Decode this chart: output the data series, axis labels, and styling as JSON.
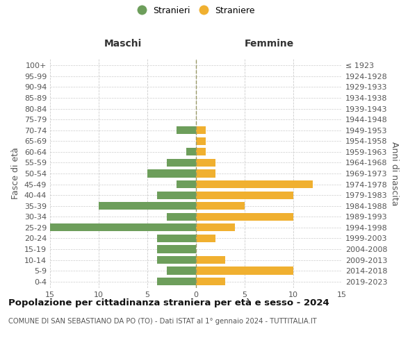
{
  "age_groups": [
    "100+",
    "95-99",
    "90-94",
    "85-89",
    "80-84",
    "75-79",
    "70-74",
    "65-69",
    "60-64",
    "55-59",
    "50-54",
    "45-49",
    "40-44",
    "35-39",
    "30-34",
    "25-29",
    "20-24",
    "15-19",
    "10-14",
    "5-9",
    "0-4"
  ],
  "birth_years": [
    "≤ 1923",
    "1924-1928",
    "1929-1933",
    "1934-1938",
    "1939-1943",
    "1944-1948",
    "1949-1953",
    "1954-1958",
    "1959-1963",
    "1964-1968",
    "1969-1973",
    "1974-1978",
    "1979-1983",
    "1984-1988",
    "1989-1993",
    "1994-1998",
    "1999-2003",
    "2004-2008",
    "2009-2013",
    "2014-2018",
    "2019-2023"
  ],
  "males": [
    0,
    0,
    0,
    0,
    0,
    0,
    2,
    0,
    1,
    3,
    5,
    2,
    4,
    10,
    3,
    15,
    4,
    4,
    4,
    3,
    4
  ],
  "females": [
    0,
    0,
    0,
    0,
    0,
    0,
    1,
    1,
    1,
    2,
    2,
    12,
    10,
    5,
    10,
    4,
    2,
    0,
    3,
    10,
    3
  ],
  "male_color": "#6d9e5b",
  "female_color": "#f0b030",
  "background_color": "#ffffff",
  "grid_color": "#cccccc",
  "title": "Popolazione per cittadinanza straniera per età e sesso - 2024",
  "subtitle": "COMUNE DI SAN SEBASTIANO DA PO (TO) - Dati ISTAT al 1° gennaio 2024 - TUTTITALIA.IT",
  "left_label": "Maschi",
  "right_label": "Femmine",
  "ylabel": "Fasce di età",
  "right_ylabel": "Anni di nascita",
  "legend_male": "Stranieri",
  "legend_female": "Straniere",
  "xlim": 15
}
